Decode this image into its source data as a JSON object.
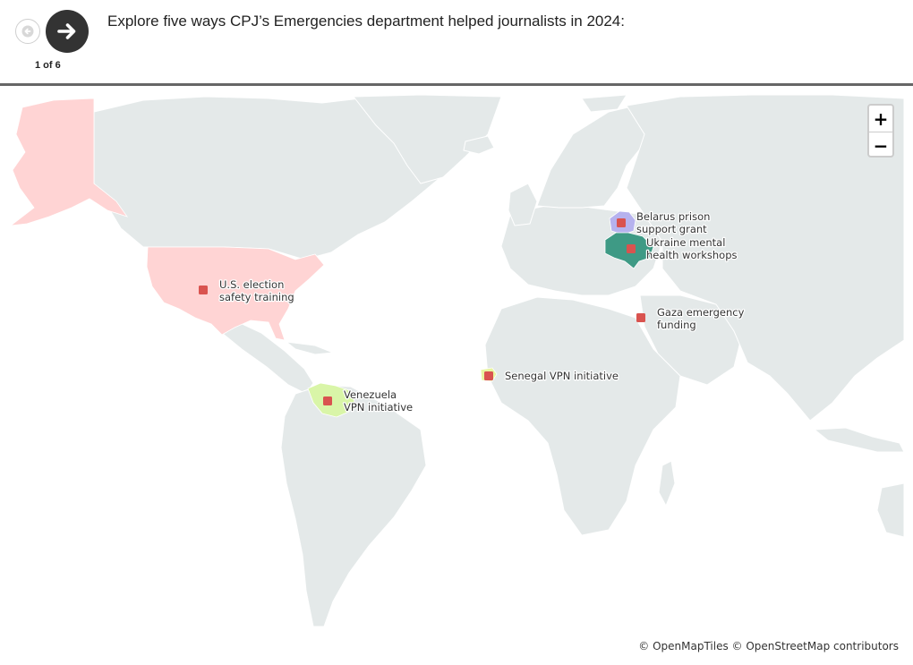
{
  "header": {
    "title": "Explore five ways CPJ’s Emergencies department helped journalists in 2024:",
    "counter": "1 of 6"
  },
  "zoom": {
    "in_label": "+",
    "out_label": "−"
  },
  "attribution": {
    "openmaptiles": "© OpenMapTiles",
    "openstreetmap": "© OpenStreetMap contributors"
  },
  "colors": {
    "land": "#e4e9e9",
    "water": "#ffffff",
    "marker": "#d9534f",
    "usa_alaska": "#ffd4d4",
    "venezuela": "#d9f5a8",
    "senegal": "#e8f5a0",
    "belarus": "#b6b2ee",
    "ukraine": "#3e9a85"
  },
  "markers": [
    {
      "id": "us",
      "line1": "U.S. election",
      "line2": "safety training"
    },
    {
      "id": "venezuela",
      "line1": "Venezuela",
      "line2": "VPN initiative"
    },
    {
      "id": "senegal",
      "line1": "Senegal VPN initiative",
      "line2": ""
    },
    {
      "id": "belarus",
      "line1": "Belarus prison",
      "line2": "support grant"
    },
    {
      "id": "ukraine",
      "line1": "Ukraine mental",
      "line2": "health workshops"
    },
    {
      "id": "gaza",
      "line1": "Gaza emergency",
      "line2": "funding"
    }
  ]
}
